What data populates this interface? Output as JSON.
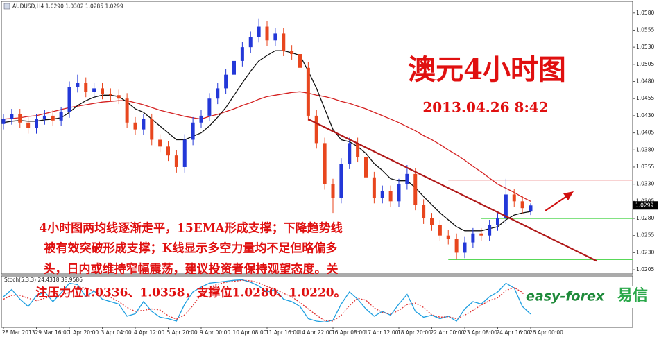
{
  "chart_data": [
    {
      "type": "candlestick",
      "header": "AUDUSD,H4 1.0290 1.0302 1.0285 1.0299",
      "title": "澳元4小时图",
      "subtitle": "2013.04.26 8:42",
      "commentary": [
        "4小时图两均线逐渐走平，15EMA形成支撑；下降趋势线",
        "被有效突破形成支撑；K线显示多空力量均不足但略偏多",
        "头，日内或维持窄幅震荡，建议投资者保持观望态度。关",
        "注压力位1.0336、1.0358，支撑位1.0280、1.0220。"
      ],
      "categories": [
        "28 Mar 2013",
        null,
        null,
        null,
        "29 Mar 16:00",
        null,
        null,
        null,
        "1 Apr 20:00",
        null,
        null,
        null,
        "3 Apr 04:00",
        null,
        null,
        null,
        "4 Apr 12:00",
        null,
        null,
        null,
        "5 Apr 20:00",
        null,
        null,
        null,
        "9 Apr 00:00",
        null,
        null,
        null,
        "10 Apr 08:00",
        null,
        null,
        null,
        "11 Apr 16:00",
        null,
        null,
        null,
        "14 Apr 22:00",
        null,
        null,
        null,
        "16 Apr 08:00",
        null,
        null,
        null,
        "17 Apr 12:00",
        null,
        null,
        null,
        "18 Apr 20:00",
        null,
        null,
        null,
        "22 Apr 00:00",
        null,
        null,
        null,
        "23 Apr 08:00",
        null,
        null,
        null,
        "24 Apr 16:00",
        null,
        null,
        null,
        "26 Apr 00:00"
      ],
      "open": [
        1.0418,
        1.0425,
        1.0432,
        1.042,
        1.0412,
        1.0425,
        1.043,
        1.0423,
        1.0435,
        1.0472,
        1.0478,
        1.0465,
        1.047,
        1.0462,
        1.046,
        1.0455,
        1.042,
        1.041,
        1.0425,
        1.0395,
        1.0385,
        1.0372,
        1.0355,
        1.0395,
        1.042,
        1.043,
        1.0455,
        1.047,
        1.049,
        1.051,
        1.053,
        1.0545,
        1.056,
        1.054,
        1.055,
        1.0525,
        1.052,
        1.05,
        1.043,
        1.039,
        1.033,
        1.031,
        1.036,
        1.039,
        1.037,
        1.034,
        1.031,
        1.032,
        1.0305,
        1.033,
        1.0345,
        1.03,
        1.028,
        1.027,
        1.0255,
        1.025,
        1.023,
        1.0245,
        1.0258,
        1.0255,
        1.027,
        1.028,
        1.0315,
        1.0305,
        1.029
      ],
      "high": [
        1.0433,
        1.044,
        1.044,
        1.0428,
        1.0433,
        1.0438,
        1.0438,
        1.0443,
        1.048,
        1.049,
        1.0486,
        1.0478,
        1.0478,
        1.047,
        1.0468,
        1.0463,
        1.0428,
        1.0433,
        1.0433,
        1.0403,
        1.0393,
        1.038,
        1.0403,
        1.0428,
        1.0438,
        1.0463,
        1.0478,
        1.0498,
        1.0518,
        1.0538,
        1.0553,
        1.0572,
        1.0568,
        1.0558,
        1.0558,
        1.0533,
        1.0528,
        1.0508,
        1.0438,
        1.0398,
        1.0338,
        1.0368,
        1.0398,
        1.0398,
        1.0378,
        1.0348,
        1.0328,
        1.0328,
        1.0338,
        1.0358,
        1.0353,
        1.0308,
        1.0288,
        1.0278,
        1.0263,
        1.0258,
        1.0253,
        1.0266,
        1.0266,
        1.0278,
        1.0288,
        1.0338,
        1.0323,
        1.0313,
        1.0302
      ],
      "low": [
        1.041,
        1.0417,
        1.0412,
        1.0404,
        1.0404,
        1.0417,
        1.0415,
        1.0415,
        1.0427,
        1.0464,
        1.0457,
        1.0457,
        1.0454,
        1.0452,
        1.0447,
        1.0412,
        1.0402,
        1.0402,
        1.0387,
        1.0377,
        1.0364,
        1.0347,
        1.0347,
        1.0387,
        1.0412,
        1.0422,
        1.0447,
        1.0462,
        1.0482,
        1.0502,
        1.0522,
        1.0537,
        1.0532,
        1.0532,
        1.0517,
        1.0512,
        1.0492,
        1.0422,
        1.0382,
        1.0322,
        1.0288,
        1.0302,
        1.0352,
        1.0362,
        1.0332,
        1.0302,
        1.0302,
        1.0297,
        1.0297,
        1.0322,
        1.0292,
        1.0272,
        1.0262,
        1.0247,
        1.0242,
        1.022,
        1.0222,
        1.0237,
        1.0247,
        1.0247,
        1.0262,
        1.0272,
        1.0297,
        1.0287,
        1.0285
      ],
      "close": [
        1.0425,
        1.0432,
        1.042,
        1.0412,
        1.0425,
        1.043,
        1.0423,
        1.0435,
        1.0472,
        1.0478,
        1.0465,
        1.047,
        1.0462,
        1.046,
        1.0455,
        1.042,
        1.041,
        1.0425,
        1.0395,
        1.0385,
        1.0372,
        1.0355,
        1.0395,
        1.042,
        1.043,
        1.0455,
        1.047,
        1.049,
        1.051,
        1.053,
        1.0545,
        1.056,
        1.054,
        1.055,
        1.0525,
        1.052,
        1.05,
        1.043,
        1.039,
        1.033,
        1.031,
        1.036,
        1.039,
        1.037,
        1.034,
        1.031,
        1.032,
        1.0305,
        1.033,
        1.0345,
        1.03,
        1.028,
        1.027,
        1.0255,
        1.025,
        1.023,
        1.0245,
        1.0258,
        1.0255,
        1.027,
        1.028,
        1.0315,
        1.0305,
        1.0295,
        1.0299
      ],
      "up_color": "#2338d8",
      "down_color": "#e8461e",
      "overlays": [
        {
          "color": "#d42020",
          "values": [
            1.0425,
            1.0426,
            1.0427,
            1.0429,
            1.043,
            1.0433,
            1.0436,
            1.0439,
            1.0442,
            1.0444,
            1.0446,
            1.0448,
            1.045,
            1.0451,
            1.0452,
            1.0452,
            1.0449,
            1.0446,
            1.0442,
            1.0438,
            1.0435,
            1.0432,
            1.0429,
            1.0427,
            1.0425,
            1.0429,
            1.0432,
            1.0436,
            1.044,
            1.0445,
            1.0449,
            1.0454,
            1.0458,
            1.046,
            1.0462,
            1.0464,
            1.0465,
            1.0463,
            1.046,
            1.0458,
            1.0455,
            1.0451,
            1.0448,
            1.0444,
            1.044,
            1.0435,
            1.043,
            1.0425,
            1.042,
            1.0414,
            1.0408,
            1.0401,
            1.0395,
            1.0388,
            1.038,
            1.0373,
            1.0365,
            1.0356,
            1.0348,
            1.0339,
            1.033,
            1.0324,
            1.0318,
            1.0311,
            1.0305
          ]
        },
        {
          "color": "#111111",
          "values": [
            1.042,
            1.0422,
            1.0423,
            1.0422,
            1.0422,
            1.0424,
            1.0425,
            1.0427,
            1.0435,
            1.0445,
            1.0452,
            1.0457,
            1.046,
            1.046,
            1.0458,
            1.045,
            1.044,
            1.0435,
            1.0425,
            1.0415,
            1.0405,
            1.0395,
            1.0395,
            1.04,
            1.0405,
            1.0415,
            1.0428,
            1.0442,
            1.046,
            1.0478,
            1.0495,
            1.051,
            1.0518,
            1.0525,
            1.0525,
            1.0522,
            1.0518,
            1.0495,
            1.047,
            1.044,
            1.041,
            1.0395,
            1.0392,
            1.0385,
            1.0375,
            1.036,
            1.035,
            1.0338,
            1.0335,
            1.0335,
            1.0325,
            1.0312,
            1.03,
            1.0288,
            1.0278,
            1.0268,
            1.0262,
            1.0262,
            1.0262,
            1.0265,
            1.0268,
            1.0278,
            1.0285,
            1.0288,
            1.029
          ]
        }
      ],
      "levels": [
        {
          "value": 1.0336,
          "x": 54,
          "color": "#f2a6a6"
        },
        {
          "value": 1.028,
          "x": 58,
          "color": "#58d858"
        },
        {
          "value": 1.022,
          "x": 54,
          "color": "#58d858"
        }
      ],
      "trendline": {
        "x": [
          37,
          72
        ],
        "values": [
          1.0425,
          1.0218
        ],
        "color": "#b01818"
      },
      "last_price": 1.0299,
      "ylim": [
        1.0199,
        1.0597
      ],
      "yticks": [
        {
          "value": 1.058,
          "label": "1.0580"
        },
        1.0555,
        {
          "value": 1.053,
          "label": "1.0530"
        },
        1.0505,
        {
          "value": 1.048,
          "label": "1.0480"
        },
        1.0455,
        {
          "value": 1.043,
          "label": "1.0430"
        },
        1.0405,
        {
          "value": 1.038,
          "label": "1.0380"
        },
        1.0355,
        {
          "value": 1.033,
          "label": "1.0330"
        },
        1.0305,
        {
          "value": 1.028,
          "label": "1.0280"
        },
        1.0255,
        {
          "value": 1.023,
          "label": "1.0230"
        },
        1.0205
      ]
    },
    {
      "type": "line",
      "title": "Stoch(5,3,3) 24.4318 38.9586",
      "ylim": [
        0,
        100
      ],
      "series": [
        {
          "color": "#1c9ee0",
          "values": [
            60,
            75,
            55,
            40,
            62,
            70,
            50,
            68,
            88,
            85,
            60,
            72,
            55,
            50,
            45,
            20,
            25,
            50,
            30,
            18,
            15,
            10,
            45,
            70,
            80,
            88,
            90,
            92,
            94,
            95,
            90,
            82,
            70,
            75,
            55,
            50,
            40,
            15,
            10,
            8,
            12,
            45,
            70,
            55,
            35,
            20,
            30,
            22,
            45,
            65,
            30,
            18,
            22,
            15,
            20,
            10,
            35,
            50,
            45,
            60,
            70,
            88,
            78,
            40,
            24.4318
          ]
        },
        {
          "color": "#e03030",
          "dashed": true,
          "values": [
            55,
            63,
            63,
            57,
            52,
            57,
            61,
            63,
            69,
            80,
            78,
            72,
            62,
            59,
            50,
            38,
            30,
            32,
            35,
            33,
            21,
            14,
            23,
            42,
            65,
            79,
            86,
            90,
            92,
            94,
            93,
            89,
            81,
            76,
            67,
            60,
            48,
            35,
            22,
            11,
            10,
            22,
            42,
            57,
            53,
            37,
            28,
            24,
            32,
            44,
            47,
            38,
            23,
            18,
            19,
            15,
            22,
            32,
            43,
            52,
            58,
            73,
            79,
            69,
            38.9586
          ]
        }
      ]
    }
  ],
  "logo": {
    "brand": "easy-forex",
    "chinese": "易信"
  }
}
